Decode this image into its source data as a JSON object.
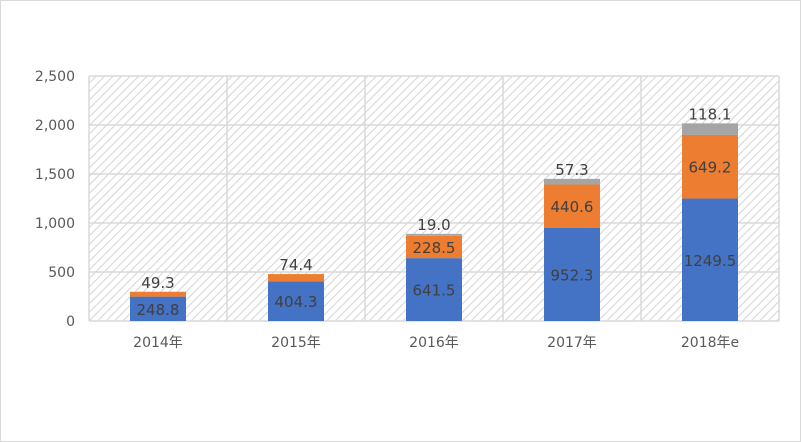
{
  "chart_data": {
    "type": "bar",
    "stacked": true,
    "categories": [
      "2014年",
      "2015年",
      "2016年",
      "2017年",
      "2018年e"
    ],
    "series": [
      {
        "name": "series-1",
        "color": "#4472c4",
        "values": [
          248.8,
          404.3,
          641.5,
          952.3,
          1249.5
        ],
        "labels": [
          "248.8",
          "404.3",
          "641.5",
          "952.3",
          "1249.5"
        ]
      },
      {
        "name": "series-2",
        "color": "#ed7d31",
        "values": [
          49.3,
          74.4,
          228.5,
          440.6,
          649.2
        ],
        "labels": [
          "49.3",
          "74.4",
          "228.5",
          "440.6",
          "649.2"
        ]
      },
      {
        "name": "series-3",
        "color": "#a5a5a5",
        "values": [
          0,
          0,
          19.0,
          57.3,
          118.1
        ],
        "labels": [
          "",
          "",
          "19.0",
          "57.3",
          "118.1"
        ]
      }
    ],
    "yticks": [
      0,
      500,
      1000,
      1500,
      2000,
      2500
    ],
    "ytick_labels": [
      "0",
      "500",
      "1,000",
      "1,500",
      "2,000",
      "2,500"
    ],
    "ylim": [
      0,
      2500
    ],
    "grid": true,
    "legend": "none",
    "title": "",
    "xlabel": "",
    "ylabel": ""
  }
}
